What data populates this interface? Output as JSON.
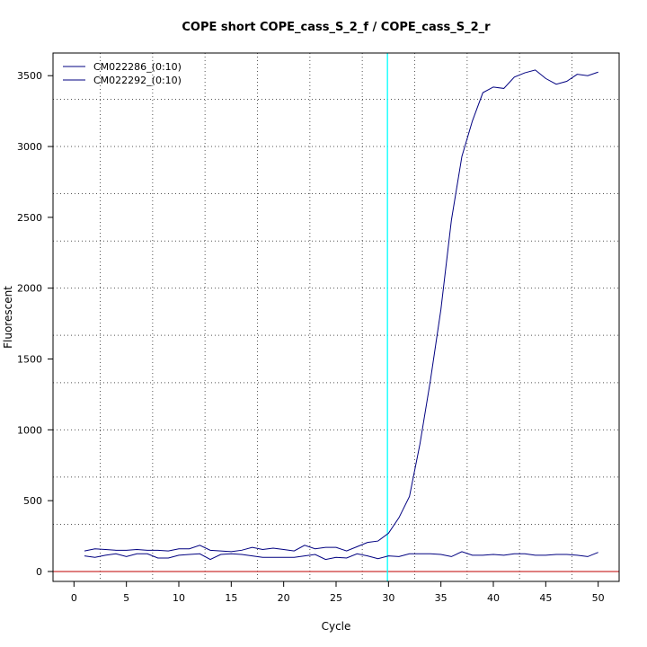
{
  "chart_data": {
    "type": "line",
    "title": "COPE short COPE_cass_S_2_f / COPE_cass_S_2_r",
    "xlabel": "Cycle",
    "ylabel": "Fluorescent",
    "xlim": [
      -2,
      52
    ],
    "ylim": [
      -70,
      3660
    ],
    "x_ticks": [
      0,
      5,
      10,
      15,
      20,
      25,
      30,
      35,
      40,
      45,
      50
    ],
    "y_ticks": [
      0,
      500,
      1000,
      1500,
      2000,
      2500,
      3000,
      3500
    ],
    "x_grid": [
      2.5,
      7.5,
      12.5,
      17.5,
      22.5,
      27.5,
      32.5,
      37.5,
      42.5,
      47.5
    ],
    "y_grid": [
      333,
      667,
      1000,
      1333,
      1667,
      2000,
      2333,
      2667,
      3000,
      3333
    ],
    "grid": true,
    "legend_position": "top-left",
    "threshold_cycle": 29.9,
    "threshold_color": "#00ffff",
    "baseline_value": 0,
    "baseline_color": "#cc3333",
    "line_color": "#000080",
    "series": [
      {
        "name": "CM022286_(0:10)",
        "x": [
          1,
          2,
          3,
          4,
          5,
          6,
          7,
          8,
          9,
          10,
          11,
          12,
          13,
          14,
          15,
          16,
          17,
          18,
          19,
          20,
          21,
          22,
          23,
          24,
          25,
          26,
          27,
          28,
          29,
          30,
          31,
          32,
          33,
          34,
          35,
          36,
          37,
          38,
          39,
          40,
          41,
          42,
          43,
          44,
          45,
          46,
          47,
          48,
          49,
          50
        ],
        "values": [
          145,
          160,
          155,
          150,
          150,
          155,
          150,
          150,
          145,
          160,
          160,
          185,
          150,
          145,
          140,
          150,
          170,
          155,
          165,
          155,
          145,
          185,
          160,
          170,
          170,
          145,
          175,
          205,
          215,
          270,
          380,
          530,
          900,
          1350,
          1850,
          2480,
          2930,
          3180,
          3380,
          3420,
          3410,
          3490,
          3520,
          3540,
          3480,
          3440,
          3460,
          3510,
          3500,
          3525
        ]
      },
      {
        "name": "CM022292_(0:10)",
        "x": [
          1,
          2,
          3,
          4,
          5,
          6,
          7,
          8,
          9,
          10,
          11,
          12,
          13,
          14,
          15,
          16,
          17,
          18,
          19,
          20,
          21,
          22,
          23,
          24,
          25,
          26,
          27,
          28,
          29,
          30,
          31,
          32,
          33,
          34,
          35,
          36,
          37,
          38,
          39,
          40,
          41,
          42,
          43,
          44,
          45,
          46,
          47,
          48,
          49,
          50
        ],
        "values": [
          110,
          100,
          115,
          125,
          105,
          125,
          125,
          95,
          95,
          115,
          120,
          125,
          85,
          120,
          125,
          120,
          110,
          100,
          100,
          100,
          100,
          110,
          120,
          85,
          100,
          95,
          125,
          110,
          90,
          110,
          105,
          125,
          125,
          125,
          120,
          105,
          140,
          115,
          115,
          120,
          115,
          125,
          125,
          115,
          115,
          120,
          120,
          115,
          105,
          135
        ]
      }
    ]
  }
}
